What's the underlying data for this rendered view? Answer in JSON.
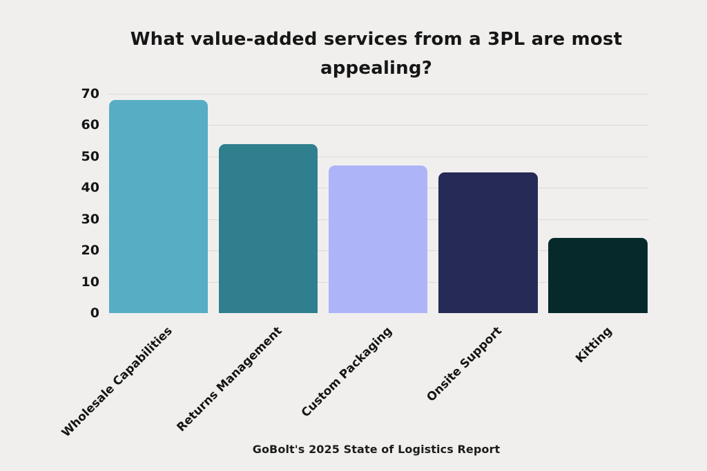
{
  "chart_data": {
    "type": "bar",
    "title": "What value-added services from a 3PL are most appealing?",
    "categories": [
      "Wholesale Capabilities",
      "Returns Management",
      "Custom Packaging",
      "Onsite Support",
      "Kitting"
    ],
    "values": [
      68,
      54,
      47,
      45,
      24
    ],
    "bar_colors": [
      "#57adc4",
      "#2f7f8e",
      "#aeb4f8",
      "#262a57",
      "#062a2c"
    ],
    "xlabel": "",
    "ylabel": "",
    "ylim": [
      0,
      70
    ],
    "y_ticks": [
      0,
      10,
      20,
      30,
      40,
      50,
      60,
      70
    ],
    "grid": "horizontal",
    "legend": "none",
    "source": "GoBolt's 2025 State of Logistics Report"
  },
  "colors": {
    "background": "#f0efee",
    "gridline": "#dcdad8",
    "text": "#141414"
  }
}
